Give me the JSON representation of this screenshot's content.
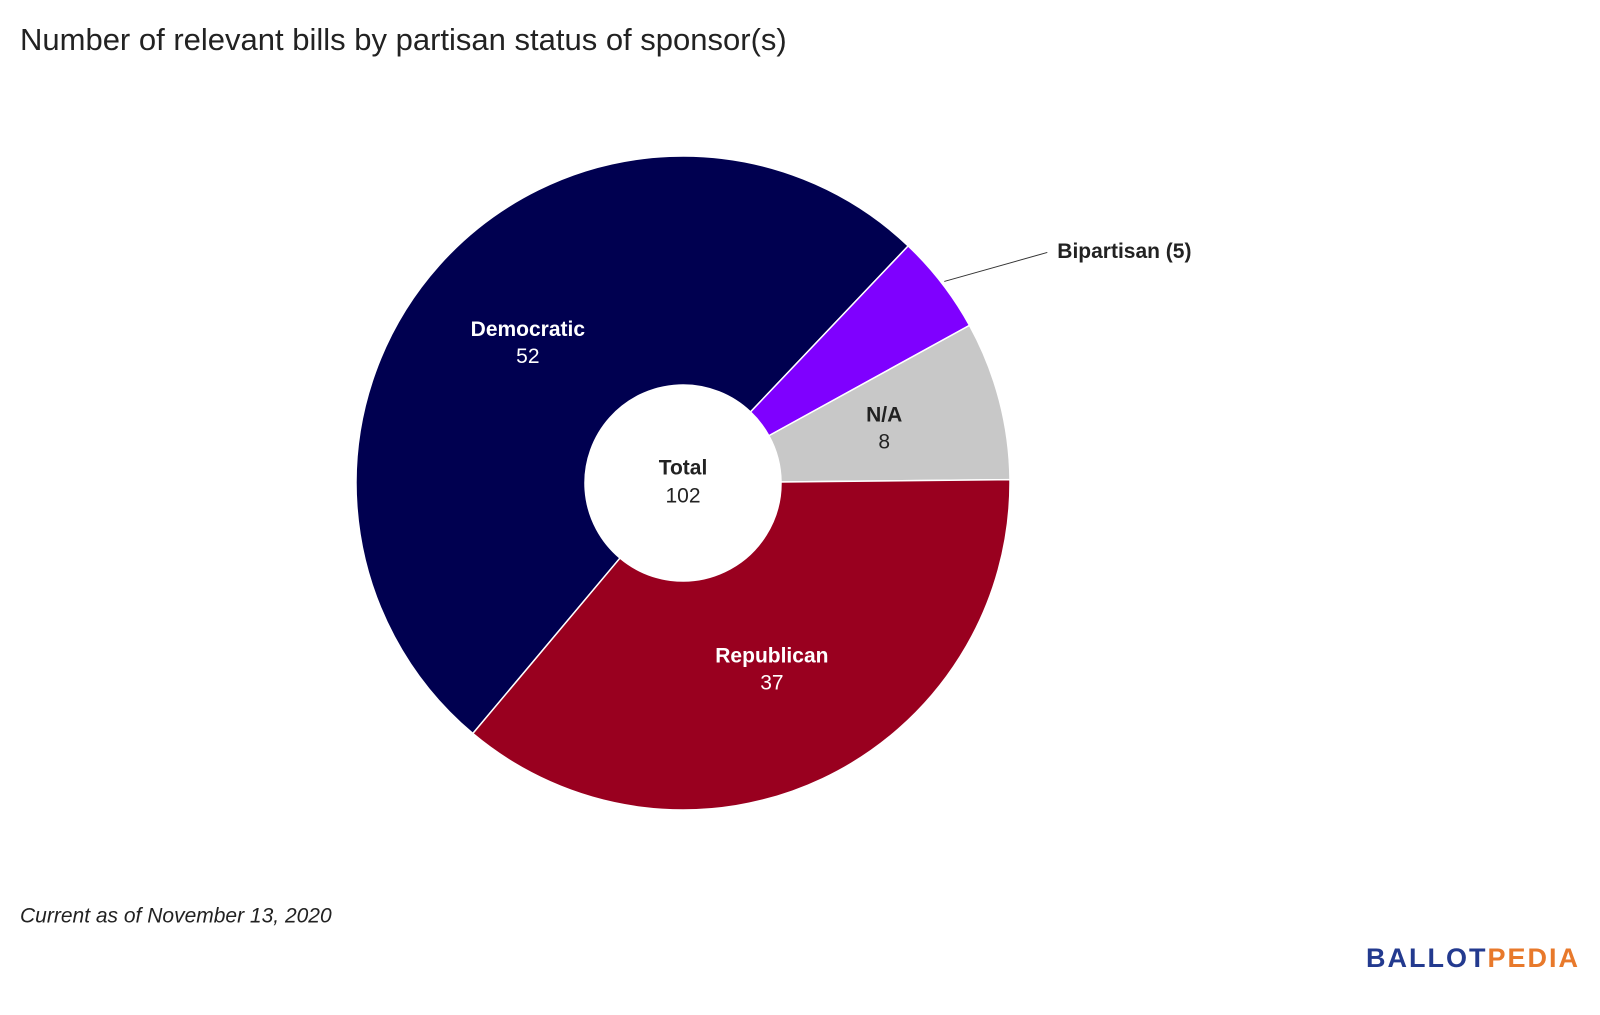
{
  "chart_data": {
    "type": "donut",
    "title": "Number of relevant bills by partisan status of sponsor(s)",
    "categories": [
      "Democratic",
      "Bipartisan (5)",
      "N/A",
      "Republican"
    ],
    "values": [
      52,
      5,
      8,
      37
    ],
    "colors": [
      "#000050",
      "#7f00ff",
      "#c8c8c8",
      "#99001f"
    ],
    "center_label": {
      "text": "Total",
      "value": 102
    },
    "note": "Current as of November 13, 2020",
    "logo": [
      "BALLOT",
      "PEDIA"
    ]
  }
}
